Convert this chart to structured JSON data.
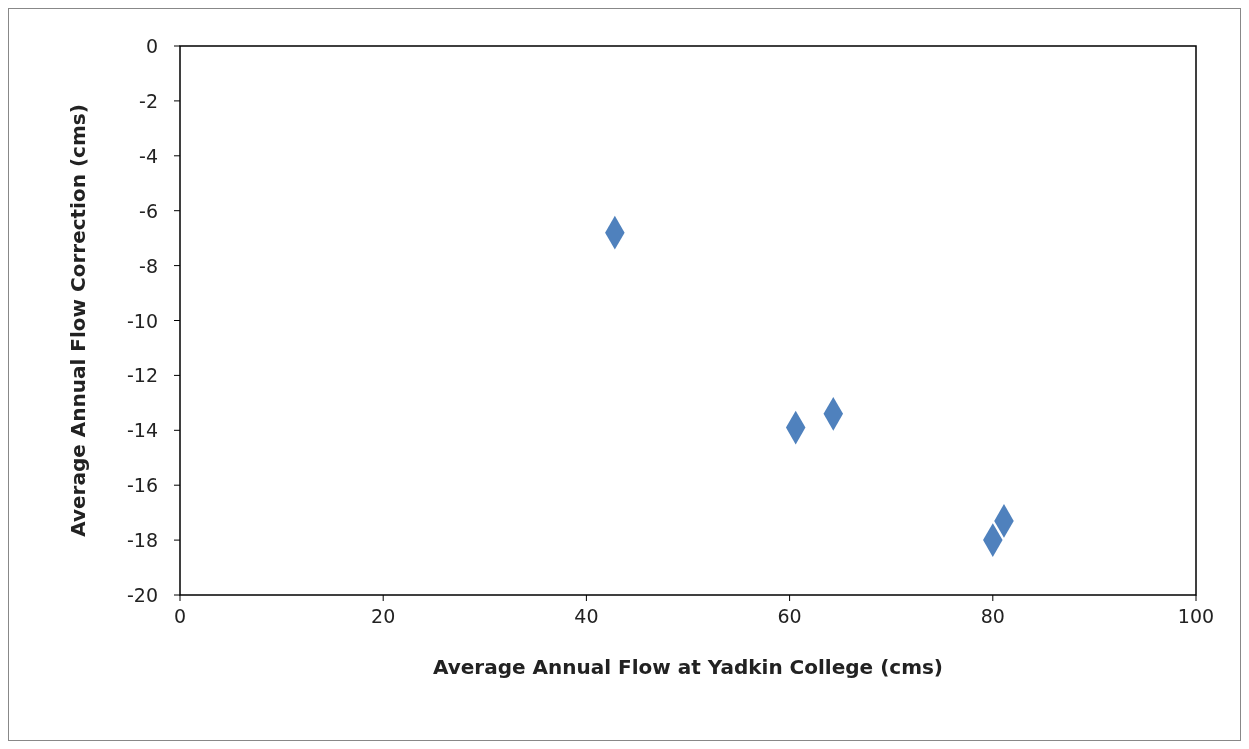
{
  "chart_data": {
    "type": "scatter",
    "xlabel": "Average Annual Flow at Yadkin College (cms)",
    "ylabel": "Average Annual Flow Correction (cms)",
    "x": [
      42.8,
      60.6,
      64.3,
      80.0,
      81.1
    ],
    "values": [
      -6.8,
      -13.9,
      -13.4,
      -18.0,
      -17.3
    ],
    "color": "#4f81bd",
    "marker": "diamond",
    "grid": false,
    "legend": false,
    "xlim": [
      0,
      100
    ],
    "xticks": [
      0,
      20,
      40,
      60,
      80,
      100
    ],
    "ylim": [
      -20,
      0
    ],
    "yticks": [
      -20,
      -18,
      -16,
      -14,
      -12,
      -10,
      -8,
      -6,
      -4,
      -2,
      0
    ]
  }
}
